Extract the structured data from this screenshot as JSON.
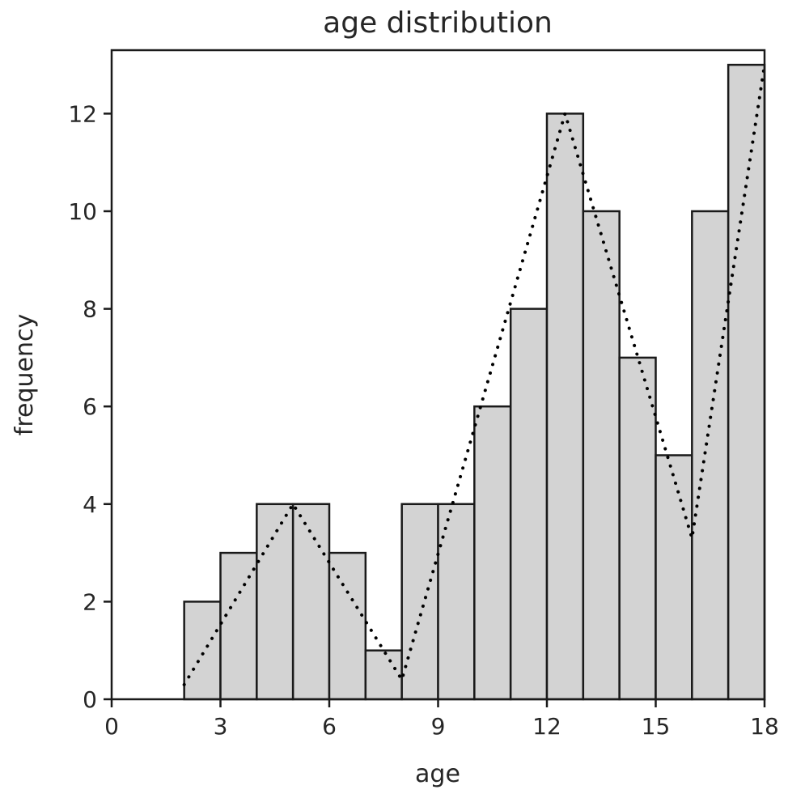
{
  "chart_data": {
    "type": "bar",
    "title": "age distribution",
    "xlabel": "age",
    "ylabel": "frequency",
    "xlim": [
      0,
      18
    ],
    "ylim": [
      0,
      13.3
    ],
    "xticks": [
      0,
      3,
      6,
      9,
      12,
      15,
      18
    ],
    "yticks": [
      0,
      2,
      4,
      6,
      8,
      10,
      12
    ],
    "bin_edges": [
      2,
      3,
      4,
      5,
      6,
      7,
      8,
      9,
      10,
      11,
      12,
      13,
      14,
      15,
      16,
      17,
      18
    ],
    "values": [
      2,
      3,
      4,
      4,
      3,
      1,
      4,
      4,
      6,
      8,
      12,
      10,
      7,
      5,
      10,
      13
    ],
    "bar_color": "#d3d3d3",
    "edge_color": "#1a1a1a",
    "trend_line": {
      "style": "dotted",
      "color": "#000000",
      "x": [
        2,
        5,
        8,
        12.5,
        16,
        18
      ],
      "y": [
        0.3,
        4,
        0.4,
        12,
        3.3,
        13
      ]
    },
    "grid": false
  }
}
